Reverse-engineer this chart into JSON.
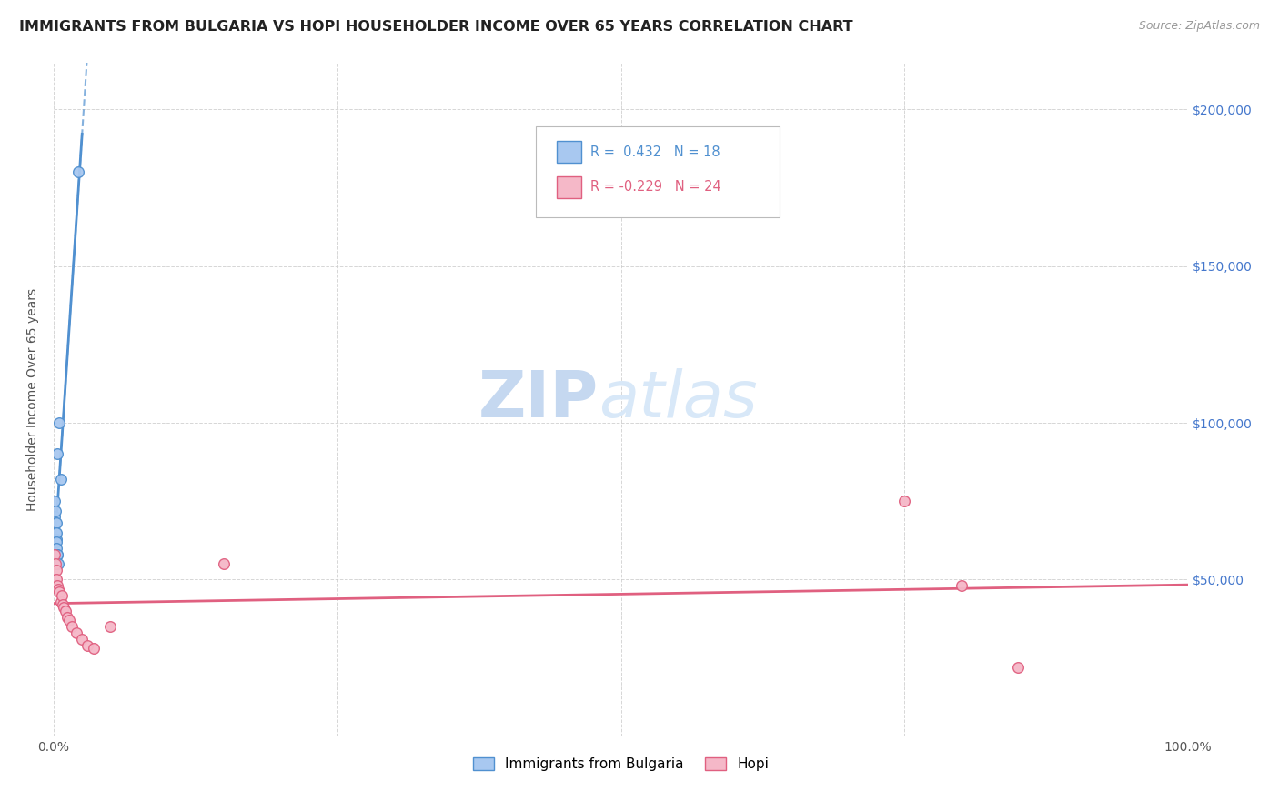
{
  "title": "IMMIGRANTS FROM BULGARIA VS HOPI HOUSEHOLDER INCOME OVER 65 YEARS CORRELATION CHART",
  "source": "Source: ZipAtlas.com",
  "ylabel": "Householder Income Over 65 years",
  "watermark_zip": "ZIP",
  "watermark_atlas": "atlas",
  "legend_series1_label": "Immigrants from Bulgaria",
  "legend_series1_R": "R =  0.432",
  "legend_series1_N": "N = 18",
  "legend_series2_label": "Hopi",
  "legend_series2_R": "R = -0.229",
  "legend_series2_N": "N = 24",
  "bulgaria_x": [
    0.0008,
    0.001,
    0.0012,
    0.0013,
    0.0015,
    0.0018,
    0.002,
    0.0022,
    0.0025,
    0.0025,
    0.0025,
    0.003,
    0.003,
    0.0035,
    0.004,
    0.0045,
    0.006,
    0.022
  ],
  "bulgaria_y": [
    75000,
    70000,
    68000,
    65000,
    63000,
    72000,
    68000,
    63000,
    65000,
    62000,
    60000,
    58000,
    90000,
    58000,
    55000,
    100000,
    82000,
    180000
  ],
  "hopi_x": [
    0.001,
    0.0015,
    0.002,
    0.0025,
    0.003,
    0.004,
    0.005,
    0.006,
    0.007,
    0.008,
    0.009,
    0.01,
    0.012,
    0.014,
    0.016,
    0.02,
    0.025,
    0.03,
    0.035,
    0.05,
    0.15,
    0.75,
    0.8,
    0.85
  ],
  "hopi_y": [
    58000,
    55000,
    53000,
    50000,
    48000,
    47000,
    46000,
    43000,
    45000,
    42000,
    41000,
    40000,
    38000,
    37000,
    35000,
    33000,
    31000,
    29000,
    28000,
    35000,
    55000,
    75000,
    48000,
    22000
  ],
  "bulgaria_color": "#a8c8f0",
  "hopi_color": "#f5b8c8",
  "bulgaria_line_color": "#5090d0",
  "hopi_line_color": "#e06080",
  "xlim": [
    0,
    1.0
  ],
  "ylim": [
    0,
    215000
  ],
  "yticks": [
    50000,
    100000,
    150000,
    200000
  ],
  "ytick_labels": [
    "$50,000",
    "$100,000",
    "$150,000",
    "$200,000"
  ],
  "xticks": [
    0.0,
    0.25,
    0.5,
    0.75,
    1.0
  ],
  "xtick_labels": [
    "0.0%",
    "",
    "",
    "",
    "100.0%"
  ],
  "grid_color": "#cccccc",
  "background_color": "#ffffff",
  "title_color": "#222222",
  "title_fontsize": 11.5,
  "axis_label_color": "#555555",
  "tick_label_color_right": "#4477cc",
  "watermark_color_zip": "#c5d8f0",
  "watermark_color_atlas": "#d8e8f8",
  "watermark_fontsize": 52
}
